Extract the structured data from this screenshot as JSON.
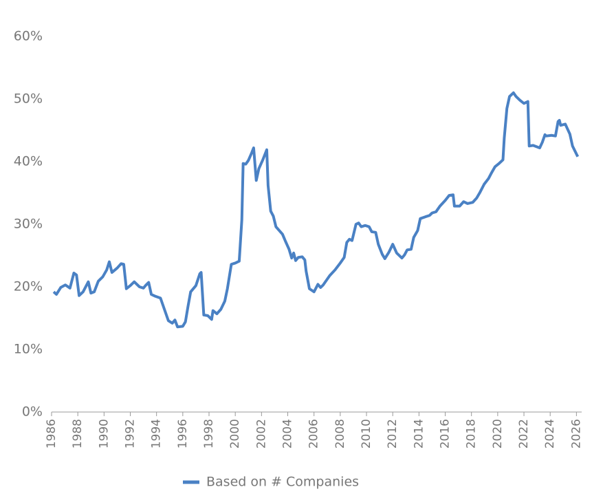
{
  "chart_data": {
    "type": "line",
    "x": [
      1986.16,
      1986.37,
      1986.7,
      1987.05,
      1987.4,
      1987.7,
      1987.9,
      1988.1,
      1988.4,
      1988.8,
      1989.0,
      1989.25,
      1989.56,
      1989.9,
      1990.2,
      1990.4,
      1990.6,
      1991.0,
      1991.3,
      1991.5,
      1991.7,
      1992.0,
      1992.3,
      1992.7,
      1993.0,
      1993.2,
      1993.4,
      1993.6,
      1993.9,
      1994.3,
      1994.6,
      1994.9,
      1995.2,
      1995.4,
      1995.6,
      1996.0,
      1996.2,
      1996.4,
      1996.6,
      1997.0,
      1997.3,
      1997.4,
      1997.6,
      1997.9,
      1998.2,
      1998.3,
      1998.6,
      1998.9,
      1999.2,
      1999.4,
      1999.7,
      2000.0,
      2000.3,
      2000.5,
      2000.6,
      2000.8,
      2001.0,
      2001.25,
      2001.4,
      2001.6,
      2001.8,
      2002.1,
      2002.4,
      2002.5,
      2002.7,
      2002.9,
      2003.1,
      2003.6,
      2003.8,
      2004.1,
      2004.3,
      2004.45,
      2004.6,
      2004.8,
      2005.1,
      2005.3,
      2005.4,
      2005.65,
      2006.0,
      2006.3,
      2006.5,
      2006.7,
      2007.2,
      2007.6,
      2008.0,
      2008.3,
      2008.5,
      2008.7,
      2008.9,
      2009.2,
      2009.4,
      2009.6,
      2009.9,
      2010.2,
      2010.4,
      2010.7,
      2010.9,
      2011.2,
      2011.4,
      2011.7,
      2012.0,
      2012.3,
      2012.7,
      2012.9,
      2013.1,
      2013.4,
      2013.6,
      2013.9,
      2014.1,
      2014.5,
      2014.8,
      2015.0,
      2015.3,
      2015.6,
      2016.0,
      2016.3,
      2016.6,
      2016.7,
      2017.1,
      2017.4,
      2017.7,
      2018.1,
      2018.4,
      2018.65,
      2018.97,
      2019.3,
      2019.5,
      2019.8,
      2020.1,
      2020.4,
      2020.5,
      2020.7,
      2020.9,
      2021.2,
      2021.4,
      2021.7,
      2022.0,
      2022.3,
      2022.4,
      2022.7,
      2023.2,
      2023.4,
      2023.6,
      2023.7,
      2024.1,
      2024.4,
      2024.6,
      2024.7,
      2024.8,
      2025.15,
      2025.5,
      2025.7,
      2026.1
    ],
    "series": [
      {
        "name": "Based on # Companies",
        "color": "#4a81c4",
        "values": [
          19.2,
          18.8,
          19.9,
          20.3,
          19.8,
          22.2,
          21.9,
          18.6,
          19.2,
          20.8,
          19.0,
          19.2,
          20.9,
          21.6,
          22.7,
          24.0,
          22.3,
          23.0,
          23.7,
          23.6,
          19.7,
          20.2,
          20.8,
          20.0,
          19.8,
          20.3,
          20.7,
          18.8,
          18.5,
          18.2,
          16.4,
          14.6,
          14.2,
          14.7,
          13.6,
          13.7,
          14.4,
          16.9,
          19.2,
          20.2,
          22.1,
          22.3,
          15.5,
          15.4,
          14.8,
          16.2,
          15.7,
          16.4,
          17.7,
          19.7,
          23.6,
          23.8,
          24.1,
          30.7,
          39.7,
          39.6,
          40.2,
          41.4,
          42.2,
          37.0,
          38.9,
          40.3,
          41.9,
          36.2,
          32.1,
          31.3,
          29.6,
          28.4,
          27.4,
          26.0,
          24.6,
          25.4,
          24.2,
          24.7,
          24.8,
          24.3,
          22.5,
          19.7,
          19.2,
          20.4,
          19.9,
          20.3,
          21.8,
          22.7,
          23.8,
          24.7,
          27.1,
          27.6,
          27.4,
          30.0,
          30.2,
          29.6,
          29.8,
          29.6,
          28.8,
          28.7,
          26.8,
          25.2,
          24.5,
          25.5,
          26.8,
          25.4,
          24.6,
          25.1,
          25.9,
          26.0,
          27.9,
          29.0,
          30.9,
          31.2,
          31.4,
          31.8,
          32.0,
          32.9,
          33.8,
          34.6,
          34.7,
          32.9,
          32.9,
          33.6,
          33.3,
          33.5,
          34.2,
          35.1,
          36.4,
          37.3,
          38.1,
          39.2,
          39.7,
          40.3,
          43.8,
          48.5,
          50.4,
          51.0,
          50.4,
          49.8,
          49.3,
          49.6,
          42.5,
          42.6,
          42.2,
          43.1,
          44.3,
          44.1,
          44.2,
          44.1,
          46.4,
          46.6,
          45.8,
          46.0,
          44.4,
          42.5,
          40.8
        ]
      }
    ],
    "xlim": [
      1986,
      2026.4
    ],
    "xticks": [
      1986,
      1988,
      1990,
      1992,
      1994,
      1996,
      1998,
      2000,
      2002,
      2004,
      2006,
      2008,
      2010,
      2012,
      2014,
      2016,
      2018,
      2020,
      2022,
      2024,
      2026
    ],
    "ylim": [
      0,
      60
    ],
    "yticks": [
      {
        "value": 0,
        "label": "0%"
      },
      {
        "value": 10,
        "label": "10%"
      },
      {
        "value": 20,
        "label": "20%"
      },
      {
        "value": 30,
        "label": "30%"
      },
      {
        "value": 40,
        "label": "40%"
      },
      {
        "value": 50,
        "label": "50%"
      },
      {
        "value": 60,
        "label": "60%"
      }
    ],
    "grid": false,
    "legend": "bottom"
  }
}
